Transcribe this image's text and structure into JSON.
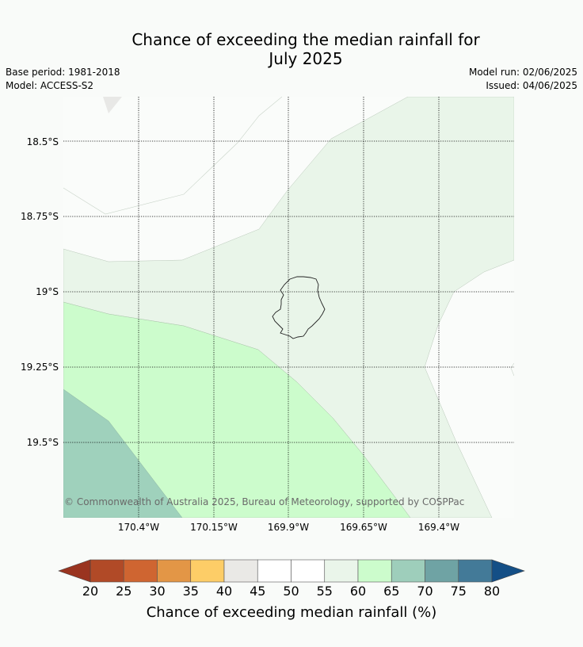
{
  "header": {
    "title_line1": "Chance of exceeding the median rainfall for",
    "title_line2": "July 2025",
    "base_period": "Base period: 1981-2018",
    "model": "Model: ACCESS-S2",
    "model_run": "Model run: 02/06/2025",
    "issued": "Issued: 04/06/2025"
  },
  "map": {
    "latitude_labels": [
      "18.5°S",
      "18.75°S",
      "19°S",
      "19.25°S",
      "19.5°S"
    ],
    "longitude_labels": [
      "170.4°W",
      "170.15°W",
      "169.9°W",
      "169.65°W",
      "169.4°W"
    ],
    "copyright": "© Commonwealth of Australia 2025, Bureau of Meteorology, supported by COSPPac",
    "zone_colors": {
      "45-50": "#fafcfa",
      "55-60": "#e9f5e9",
      "60-65": "#ccfccc",
      "65-70": "#9fd1bc",
      "40-45": "#e8e8e6"
    }
  },
  "colorbar": {
    "label": "Chance of exceeding median rainfall (%)",
    "ticks": [
      "20",
      "25",
      "30",
      "35",
      "40",
      "45",
      "50",
      "55",
      "60",
      "65",
      "70",
      "75",
      "80"
    ],
    "low_extend_color": "#9a3420",
    "high_extend_color": "#144f86",
    "bin_colors": [
      "#b14a27",
      "#cf6531",
      "#e39646",
      "#fdcd67",
      "#eae9e6",
      "#ffffff",
      "#ffffff",
      "#eaf5ea",
      "#ccfccc",
      "#9ecebb",
      "#6fa3a4",
      "#437a98"
    ]
  }
}
